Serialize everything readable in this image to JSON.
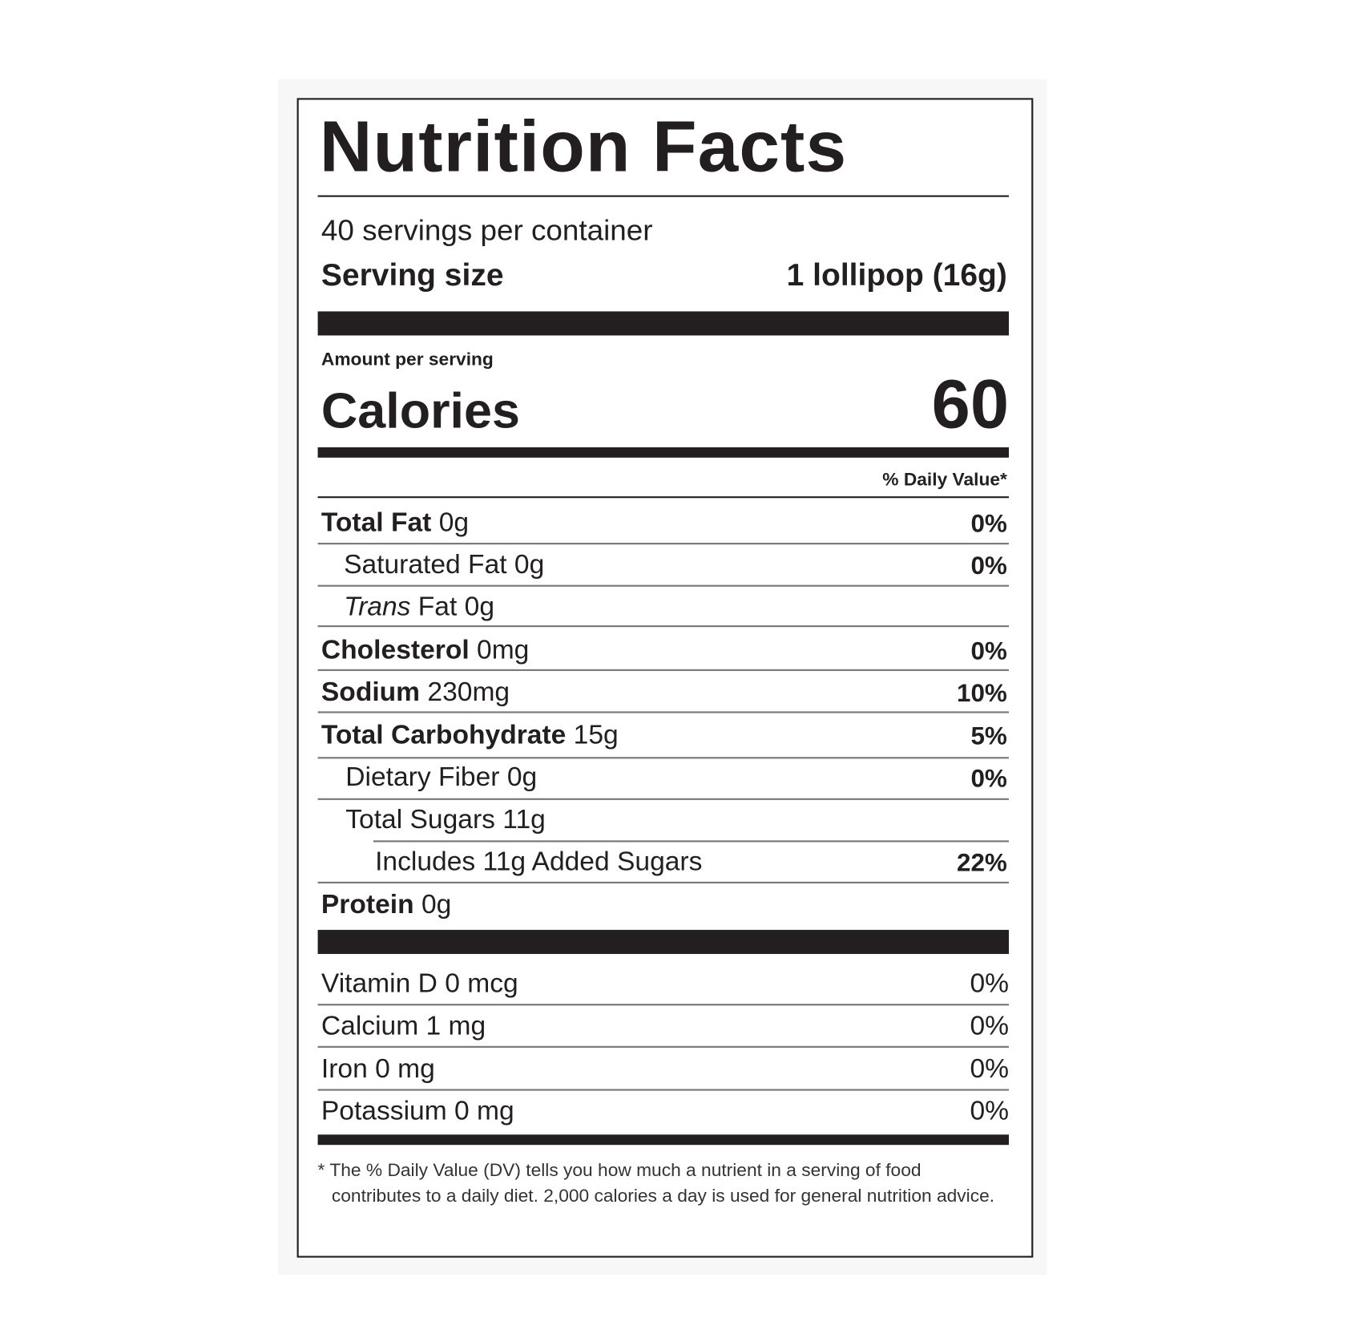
{
  "title": "Nutrition Facts",
  "servings": "40 servings per container",
  "serving_size": {
    "label": "Serving size",
    "value": "1 lollipop (16g)"
  },
  "amount_per_serving": "Amount per serving",
  "calories": {
    "label": "Calories",
    "value": "60"
  },
  "daily_value_header": "% Daily Value*",
  "nutrients": [
    {
      "name": "Total Fat",
      "amount": "0g",
      "dv": "0%",
      "sub": [
        {
          "amount": "Saturated Fat 0g",
          "dv": "0%"
        },
        {
          "italic": "Trans",
          "amount": "Fat 0g"
        }
      ]
    },
    {
      "name": "Cholesterol",
      "amount": "0mg",
      "dv": "0%"
    },
    {
      "name": "Sodium",
      "amount": "230mg",
      "dv": "10%"
    },
    {
      "name": "Total Carbohydrate",
      "amount": "15g",
      "dv": "5%",
      "sub": [
        {
          "amount": "Dietary Fiber 0g",
          "dv": "0%"
        },
        {
          "amount": "Total Sugars 11g",
          "sub": [
            {
              "amount": "Includes 11g Added Sugars",
              "dv": "22%"
            }
          ]
        }
      ]
    },
    {
      "name": "Protein",
      "amount": "0g"
    }
  ],
  "vitamins": [
    {
      "label": "Vitamin D 0 mcg",
      "dv": "0%"
    },
    {
      "label": "Calcium 1 mg",
      "dv": "0%"
    },
    {
      "label": "Iron 0 mg",
      "dv": "0%"
    },
    {
      "label": "Potassium 0 mg",
      "dv": "0%"
    }
  ],
  "footnote": {
    "mark": "*",
    "text": "The % Daily Value (DV) tells you how much a nutrient in a serving of food contributes to a daily diet. 2,000 calories a day is used for general nutrition advice."
  }
}
